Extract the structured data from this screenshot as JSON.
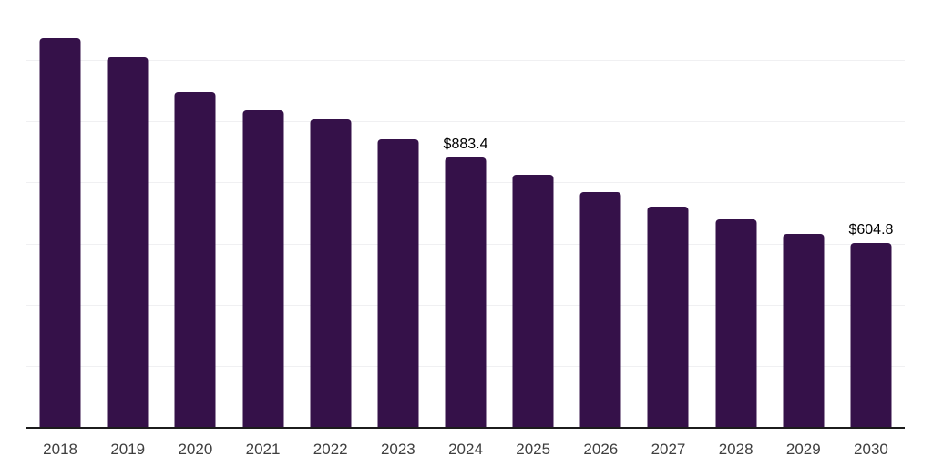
{
  "chart_data": {
    "type": "bar",
    "title": "",
    "xlabel": "",
    "ylabel": "",
    "categories": [
      "2018",
      "2019",
      "2020",
      "2021",
      "2022",
      "2023",
      "2024",
      "2025",
      "2026",
      "2027",
      "2028",
      "2029",
      "2030"
    ],
    "values": [
      1275,
      1211,
      1099,
      1041,
      1009,
      945,
      883.4,
      827,
      773,
      723,
      681,
      636,
      604.8
    ],
    "data_labels": {
      "2024": "$883.4",
      "2030": "$604.8"
    },
    "value_prefix": "$",
    "ylim": [
      0,
      1400
    ],
    "gridline_step": 200,
    "grid": true,
    "legend": false,
    "colors": {
      "bar": "#351149",
      "axis_line": "#1c1c1c",
      "gridline": "#f0f0f2",
      "tick_label": "#3f3f3f",
      "data_label": "#000000",
      "background": "#ffffff"
    }
  }
}
